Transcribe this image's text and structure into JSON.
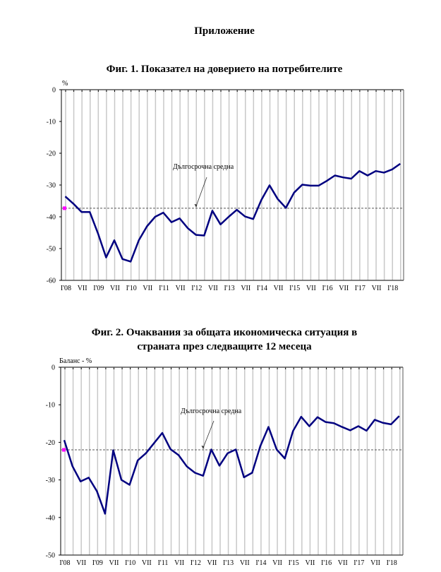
{
  "page_title": "Приложение",
  "chart_data": [
    {
      "type": "line",
      "title": "Фиг. 1. Показател на доверието на потребителите",
      "ylabel": "%",
      "ylim": [
        -60,
        0
      ],
      "yticks": [
        0,
        -10,
        -20,
        -30,
        -40,
        -50,
        -60
      ],
      "xtick_labels": [
        "I'08",
        "VII",
        "I'09",
        "VII",
        "I'10",
        "VII",
        "I'11",
        "VII",
        "I'12",
        "VII",
        "I'13",
        "VII",
        "I'14",
        "VII",
        "I'15",
        "VII",
        "I'16",
        "VII",
        "I'17",
        "VII",
        "I'18"
      ],
      "annotation": "Дългосрочна средна",
      "long_term_average": -37.3,
      "grid": "vertical",
      "colors": {
        "series": "#000080",
        "average_marker": "#ff00ff",
        "grid": "#c8c8c8"
      },
      "series": [
        {
          "name": "Показател на доверието на потребителите",
          "values": [
            -33.6,
            -35.9,
            -38.5,
            -38.5,
            -45.2,
            -52.8,
            -47.4,
            -53.3,
            -54.1,
            -47.4,
            -43.0,
            -40.0,
            -38.7,
            -41.7,
            -40.5,
            -43.6,
            -45.7,
            -45.9,
            -38.1,
            -42.4,
            -40.0,
            -37.8,
            -39.9,
            -40.7,
            -34.7,
            -30.1,
            -34.4,
            -37.2,
            -32.4,
            -29.9,
            -30.2,
            -30.2,
            -28.7,
            -27.0,
            -27.6,
            -28.0,
            -25.6,
            -27.0,
            -25.6,
            -26.1,
            -25.1,
            -23.3
          ]
        }
      ]
    },
    {
      "type": "line",
      "title": "Фиг. 2. Очаквания за общата икономическа ситуация в",
      "title_line2": "страната през следващите 12 месеца",
      "ylabel": "Баланс - %",
      "ylim": [
        -50,
        0
      ],
      "yticks": [
        0,
        -10,
        -20,
        -30,
        -40,
        -50
      ],
      "xtick_labels": [
        "I'08",
        "VII",
        "I'09",
        "VII",
        "I'10",
        "VII",
        "I'11",
        "VII",
        "I'12",
        "VII",
        "I'13",
        "VII",
        "I'14",
        "VII",
        "I'15",
        "VII",
        "I'16",
        "VII",
        "I'17",
        "VII",
        "I'18"
      ],
      "annotation": "Дългосрочна средна",
      "long_term_average": -22.0,
      "grid": "vertical",
      "colors": {
        "series": "#000080",
        "average_marker": "#ff00ff",
        "grid": "#c8c8c8"
      },
      "series": [
        {
          "name": "Очаквания за общата икономическа ситуация",
          "values": [
            -19.4,
            -26.3,
            -30.4,
            -29.4,
            -33.0,
            -39.0,
            -22.1,
            -30.0,
            -31.3,
            -24.8,
            -22.9,
            -20.2,
            -17.5,
            -21.8,
            -23.4,
            -26.4,
            -28.1,
            -28.9,
            -21.9,
            -26.2,
            -22.9,
            -21.9,
            -29.3,
            -28.1,
            -21.0,
            -15.9,
            -21.9,
            -24.3,
            -17.0,
            -13.2,
            -15.7,
            -13.3,
            -14.6,
            -14.9,
            -15.9,
            -16.8,
            -15.7,
            -16.9,
            -14.0,
            -14.8,
            -15.2,
            -13.0
          ]
        }
      ]
    }
  ]
}
